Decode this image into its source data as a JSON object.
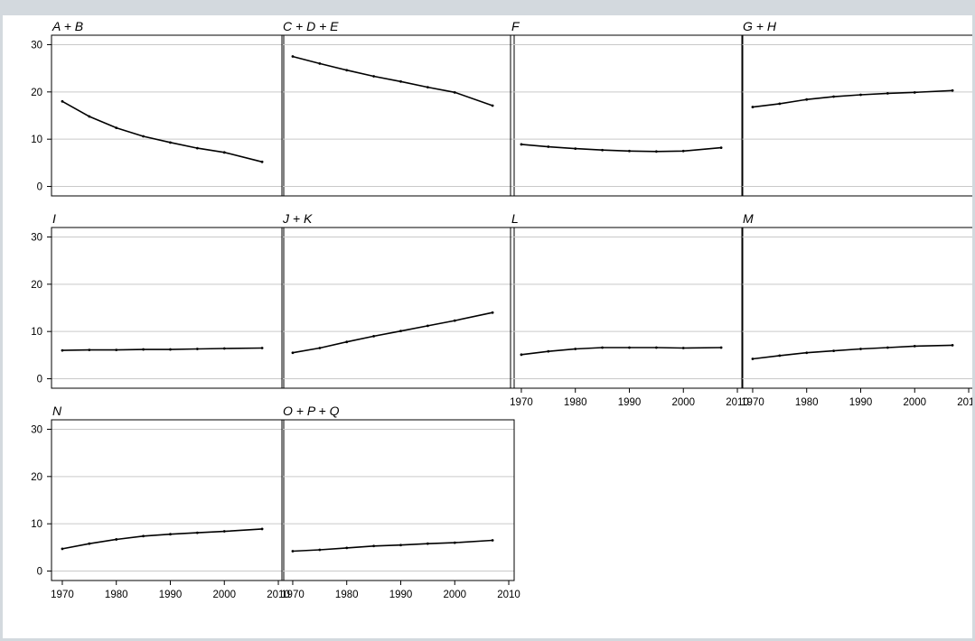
{
  "chart_data": [
    {
      "type": "line",
      "title": "A + B",
      "x": [
        1970,
        1975,
        1980,
        1985,
        1990,
        1995,
        2000,
        2007
      ],
      "values": [
        18,
        14.8,
        12.4,
        10.6,
        9.3,
        8.1,
        7.2,
        5.2
      ]
    },
    {
      "type": "line",
      "title": "C + D + E",
      "x": [
        1970,
        1975,
        1980,
        1985,
        1990,
        1995,
        2000,
        2007
      ],
      "values": [
        27.5,
        26,
        24.6,
        23.3,
        22.2,
        21,
        19.9,
        17.1
      ]
    },
    {
      "type": "line",
      "title": "F",
      "x": [
        1970,
        1975,
        1980,
        1985,
        1990,
        1995,
        2000,
        2007
      ],
      "values": [
        8.9,
        8.4,
        8,
        7.7,
        7.5,
        7.4,
        7.5,
        8.2
      ]
    },
    {
      "type": "line",
      "title": "G + H",
      "x": [
        1970,
        1975,
        1980,
        1985,
        1990,
        1995,
        2000,
        2007
      ],
      "values": [
        16.8,
        17.5,
        18.4,
        19,
        19.4,
        19.7,
        19.9,
        20.3
      ]
    },
    {
      "type": "line",
      "title": "I",
      "x": [
        1970,
        1975,
        1980,
        1985,
        1990,
        1995,
        2000,
        2007
      ],
      "values": [
        6,
        6.1,
        6.1,
        6.2,
        6.2,
        6.3,
        6.4,
        6.5
      ]
    },
    {
      "type": "line",
      "title": "J + K",
      "x": [
        1970,
        1975,
        1980,
        1985,
        1990,
        1995,
        2000,
        2007
      ],
      "values": [
        5.5,
        6.5,
        7.8,
        9,
        10.1,
        11.2,
        12.3,
        14
      ]
    },
    {
      "type": "line",
      "title": "L",
      "x": [
        1970,
        1975,
        1980,
        1985,
        1990,
        1995,
        2000,
        2007
      ],
      "values": [
        5.1,
        5.8,
        6.3,
        6.6,
        6.6,
        6.6,
        6.5,
        6.6
      ]
    },
    {
      "type": "line",
      "title": "M",
      "x": [
        1970,
        1975,
        1980,
        1985,
        1990,
        1995,
        2000,
        2007
      ],
      "values": [
        4.2,
        4.9,
        5.5,
        5.9,
        6.3,
        6.6,
        6.9,
        7.1
      ]
    },
    {
      "type": "line",
      "title": "N",
      "x": [
        1970,
        1975,
        1980,
        1985,
        1990,
        1995,
        2000,
        2007
      ],
      "values": [
        4.7,
        5.8,
        6.7,
        7.4,
        7.8,
        8.1,
        8.4,
        8.9
      ]
    },
    {
      "type": "line",
      "title": "O + P + Q",
      "x": [
        1970,
        1975,
        1980,
        1985,
        1990,
        1995,
        2000,
        2007
      ],
      "values": [
        4.2,
        4.5,
        4.9,
        5.3,
        5.5,
        5.8,
        6,
        6.5
      ]
    }
  ],
  "axes": {
    "x_ticks": [
      "1970",
      "1980",
      "1990",
      "2000",
      "2010"
    ],
    "y_ticks": [
      "0",
      "10",
      "20",
      "30"
    ],
    "xlim": [
      1968,
      2011
    ],
    "ylim": [
      -2,
      32
    ],
    "grid": "horizontal"
  }
}
